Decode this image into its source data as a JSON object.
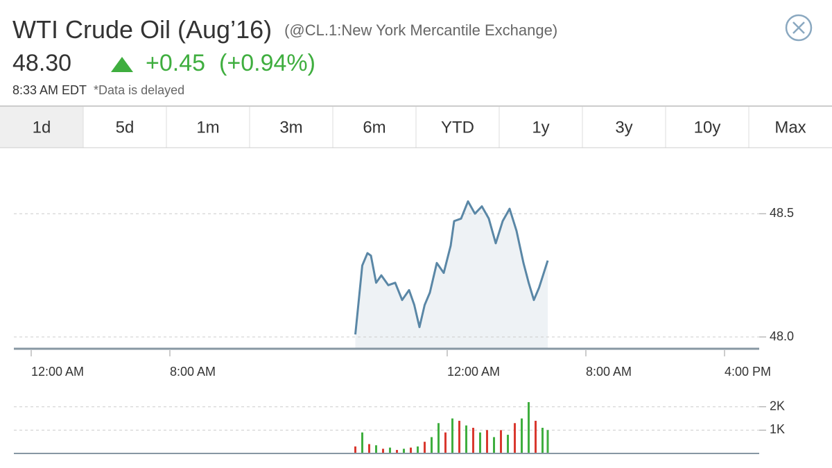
{
  "header": {
    "title": "WTI Crude Oil (Aug’16)",
    "subtitle": "(@CL.1:New York Mercantile Exchange)",
    "price": "48.30",
    "change": "+0.45",
    "change_percent": "(+0.94%)",
    "time": "8:33 AM EDT",
    "note": "*Data is delayed"
  },
  "tabs": {
    "items": [
      "1d",
      "5d",
      "1m",
      "3m",
      "6m",
      "YTD",
      "1y",
      "3y",
      "10y",
      "Max"
    ],
    "active": 0
  },
  "chart_data": [
    {
      "type": "line",
      "color": "#5a87a6",
      "fill": "#eef2f5",
      "grid": true,
      "x": [
        18.7,
        18.8,
        19.1,
        19.4,
        19.6,
        19.9,
        20.2,
        20.6,
        21.0,
        21.4,
        21.8,
        22.1,
        22.4,
        22.7,
        23.0,
        23.4,
        23.8,
        24.2,
        24.4,
        24.8,
        25.2,
        25.6,
        26.0,
        26.4,
        26.8,
        27.2,
        27.6,
        28.0,
        28.4,
        28.7,
        29.0,
        29.3,
        29.8
      ],
      "values": [
        48.01,
        48.08,
        48.29,
        48.34,
        48.33,
        48.22,
        48.25,
        48.21,
        48.22,
        48.15,
        48.19,
        48.13,
        48.04,
        48.13,
        48.18,
        48.3,
        48.26,
        48.37,
        48.47,
        48.48,
        48.55,
        48.5,
        48.53,
        48.48,
        48.38,
        48.47,
        48.52,
        48.43,
        48.3,
        48.22,
        48.15,
        48.2,
        48.31
      ],
      "xlim": [
        -1,
        42
      ],
      "ylim": [
        47.955,
        48.72
      ],
      "xticks": [
        {
          "value": 0,
          "label": "12:00 AM"
        },
        {
          "value": 8,
          "label": "8:00 AM"
        },
        {
          "value": 24,
          "label": "12:00 AM"
        },
        {
          "value": 32,
          "label": "8:00 AM"
        },
        {
          "value": 40,
          "label": "4:00 PM"
        }
      ],
      "yticks": [
        48.5,
        {
          "value": 48,
          "label": "48.0"
        }
      ]
    },
    {
      "type": "bar",
      "grid": true,
      "x": [
        18.7,
        19.1,
        19.5,
        19.9,
        20.3,
        20.7,
        21.1,
        21.5,
        21.9,
        22.3,
        22.7,
        23.1,
        23.5,
        23.9,
        24.3,
        24.7,
        25.1,
        25.5,
        25.9,
        26.3,
        26.7,
        27.1,
        27.5,
        27.9,
        28.3,
        28.7,
        29.1,
        29.5,
        29.8
      ],
      "values": [
        300,
        900,
        400,
        350,
        200,
        250,
        150,
        200,
        250,
        300,
        500,
        700,
        1300,
        900,
        1500,
        1400,
        1200,
        1100,
        900,
        1000,
        700,
        1000,
        800,
        1300,
        1500,
        2200,
        1400,
        1100,
        1000
      ],
      "colors": [
        "#d9382f",
        "#3fae3f",
        "#d9382f",
        "#3fae3f",
        "#d9382f",
        "#3fae3f",
        "#d9382f",
        "#3fae3f",
        "#d9382f",
        "#3fae3f",
        "#d9382f",
        "#3fae3f",
        "#3fae3f",
        "#d9382f",
        "#3fae3f",
        "#d9382f",
        "#3fae3f",
        "#d9382f",
        "#3fae3f",
        "#d9382f",
        "#3fae3f",
        "#d9382f",
        "#3fae3f",
        "#d9382f",
        "#3fae3f",
        "#3fae3f",
        "#d9382f",
        "#3fae3f",
        "#3fae3f"
      ],
      "xlim": [
        -1,
        42
      ],
      "ylim": [
        0,
        2200
      ],
      "yticks": [
        {
          "value": 2000,
          "label": "2K"
        },
        {
          "value": 1000,
          "label": "1K"
        }
      ]
    }
  ]
}
